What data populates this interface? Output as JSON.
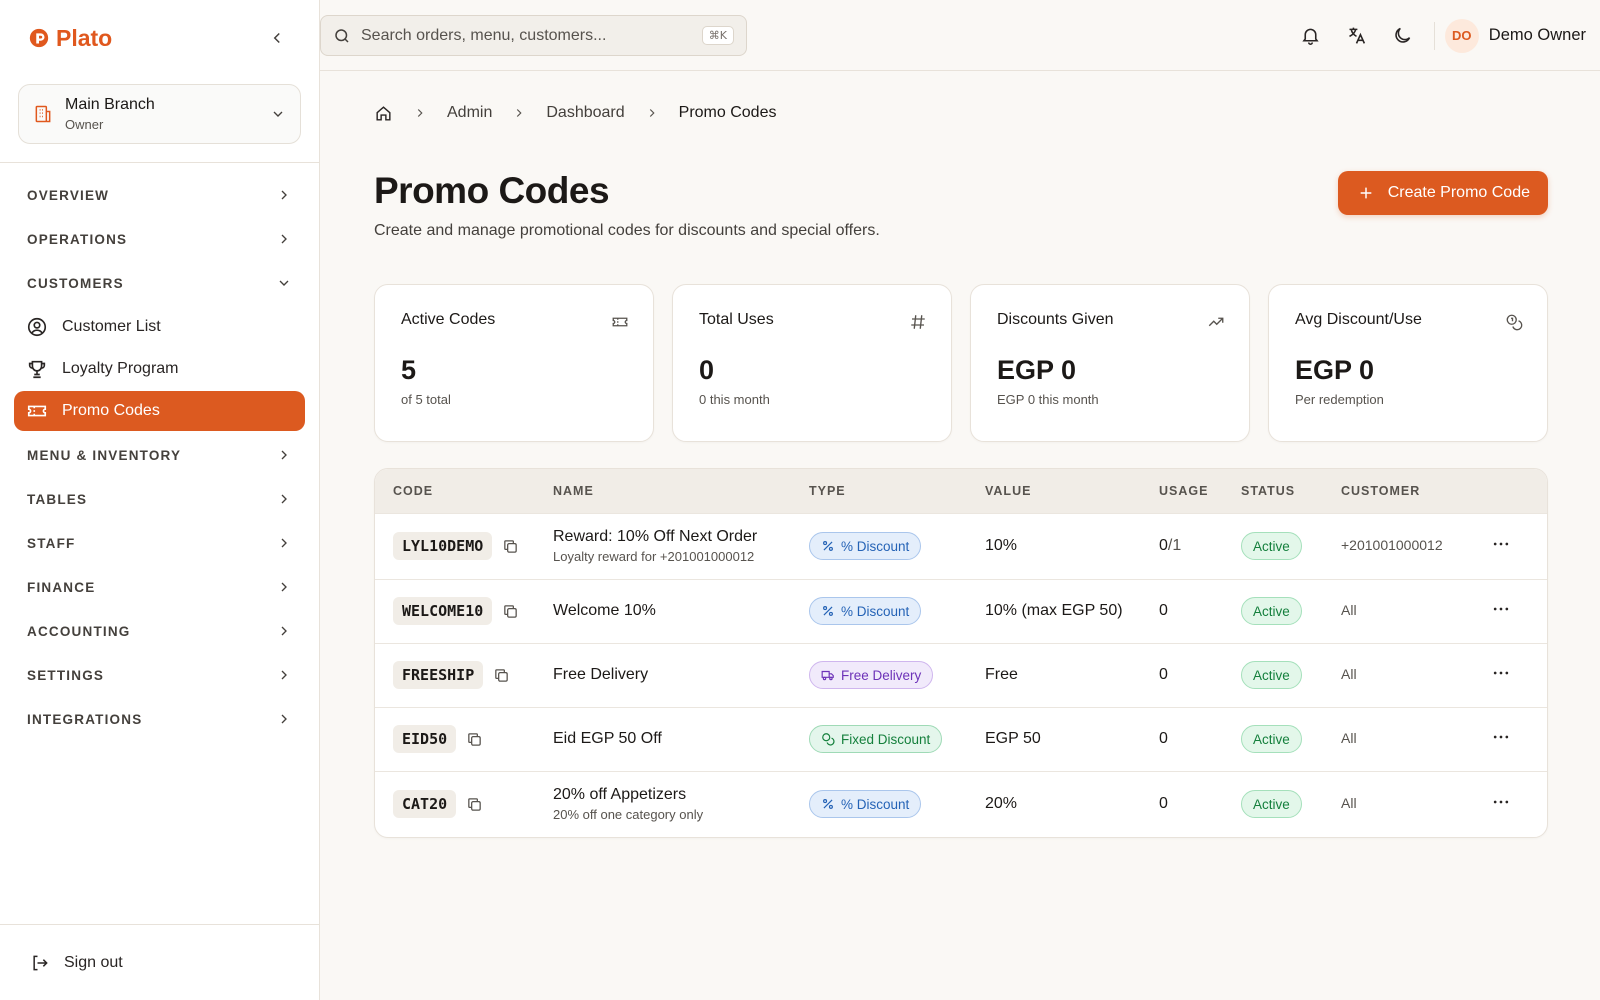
{
  "app": {
    "name": "Plato"
  },
  "branch": {
    "name": "Main Branch",
    "role": "Owner"
  },
  "sidebar": {
    "sections": [
      {
        "key": "overview",
        "label": "OVERVIEW"
      },
      {
        "key": "operations",
        "label": "OPERATIONS"
      },
      {
        "key": "customers",
        "label": "CUSTOMERS"
      },
      {
        "key": "menu",
        "label": "MENU & INVENTORY"
      },
      {
        "key": "tables",
        "label": "TABLES"
      },
      {
        "key": "staff",
        "label": "STAFF"
      },
      {
        "key": "finance",
        "label": "FINANCE"
      },
      {
        "key": "accounting",
        "label": "ACCOUNTING"
      },
      {
        "key": "settings",
        "label": "SETTINGS"
      },
      {
        "key": "integrations",
        "label": "INTEGRATIONS"
      }
    ],
    "customer_items": [
      {
        "label": "Customer List",
        "icon": "user-circle-icon"
      },
      {
        "label": "Loyalty Program",
        "icon": "trophy-icon"
      },
      {
        "label": "Promo Codes",
        "icon": "ticket-icon",
        "active": true
      }
    ],
    "sign_out": "Sign out"
  },
  "topbar": {
    "search_placeholder": "Search orders, menu, customers...",
    "shortcut": "⌘K",
    "user_initials": "DO",
    "user_name": "Demo Owner"
  },
  "breadcrumb": [
    "Admin",
    "Dashboard",
    "Promo Codes"
  ],
  "page": {
    "title": "Promo Codes",
    "subtitle": "Create and manage promotional codes for discounts and special offers.",
    "create_button": "Create Promo Code"
  },
  "stats": [
    {
      "label": "Active Codes",
      "value": "5",
      "note": "of 5 total",
      "icon": "ticket-icon"
    },
    {
      "label": "Total Uses",
      "value": "0",
      "note": "0 this month",
      "icon": "hash-icon"
    },
    {
      "label": "Discounts Given",
      "value": "EGP 0",
      "note": "EGP 0 this month",
      "icon": "trending-up-icon"
    },
    {
      "label": "Avg Discount/Use",
      "value": "EGP 0",
      "note": "Per redemption",
      "icon": "coins-icon"
    }
  ],
  "table": {
    "headers": [
      "CODE",
      "NAME",
      "TYPE",
      "VALUE",
      "USAGE",
      "STATUS",
      "CUSTOMER"
    ],
    "rows": [
      {
        "code": "LYL10DEMO",
        "name": "Reward: 10% Off Next Order",
        "desc": "Loyalty reward for +201001000012",
        "type": "% Discount",
        "value": "10%",
        "usage": "0",
        "usage_max": "/1",
        "status": "Active",
        "customer": "+201001000012"
      },
      {
        "code": "WELCOME10",
        "name": "Welcome 10%",
        "desc": "",
        "type": "% Discount",
        "value": "10% (max EGP 50)",
        "usage": "0",
        "usage_max": "",
        "status": "Active",
        "customer": "All"
      },
      {
        "code": "FREESHIP",
        "name": "Free Delivery",
        "desc": "",
        "type": "Free Delivery",
        "value": "Free",
        "usage": "0",
        "usage_max": "",
        "status": "Active",
        "customer": "All"
      },
      {
        "code": "EID50",
        "name": "Eid EGP 50 Off",
        "desc": "",
        "type": "Fixed Discount",
        "value": "EGP 50",
        "usage": "0",
        "usage_max": "",
        "status": "Active",
        "customer": "All"
      },
      {
        "code": "CAT20",
        "name": "20% off Appetizers",
        "desc": "20% off one category only",
        "type": "% Discount",
        "value": "20%",
        "usage": "0",
        "usage_max": "",
        "status": "Active",
        "customer": "All"
      }
    ]
  },
  "colors": {
    "brand": "#dc5a20",
    "success": "#15803d",
    "info": "#2563b6",
    "purple": "#6d32b8"
  }
}
